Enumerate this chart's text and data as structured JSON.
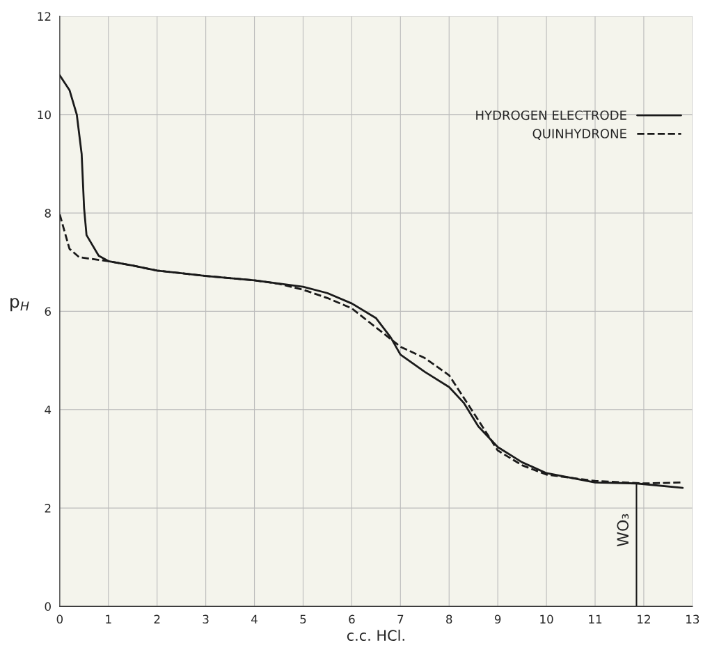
{
  "chart_data": {
    "type": "line",
    "xlabel": "c.c. HCl.",
    "ylabel": "p$_{H}$",
    "xlim": [
      0,
      13
    ],
    "ylim": [
      0,
      12
    ],
    "xticks": [
      0,
      1,
      2,
      3,
      4,
      5,
      6,
      7,
      8,
      9,
      10,
      11,
      12,
      13
    ],
    "yticks": [
      0,
      2,
      4,
      6,
      8,
      10,
      12
    ],
    "grid": true,
    "legend": "top right",
    "series": [
      {
        "name": "HYDROGEN ELECTRODE",
        "color": "#1a1a1a",
        "line_style": "solid",
        "x": [
          0,
          0.2,
          0.35,
          0.45,
          0.5,
          0.55,
          0.8,
          1,
          1.5,
          2,
          3,
          4,
          5,
          5.5,
          6,
          6.5,
          6.8,
          7,
          7.5,
          8,
          8.3,
          8.6,
          9,
          9.5,
          10,
          11,
          11.85,
          12.8
        ],
        "values": [
          10.8,
          10.5,
          10,
          9.2,
          8.1,
          7.55,
          7.13,
          7.02,
          6.93,
          6.83,
          6.72,
          6.63,
          6.5,
          6.37,
          6.16,
          5.86,
          5.47,
          5.12,
          4.77,
          4.46,
          4.14,
          3.66,
          3.24,
          2.93,
          2.71,
          2.52,
          2.5,
          2.41
        ]
      },
      {
        "color": "#1a1a1a",
        "line_style": "solid",
        "x": [
          11.85,
          11.85
        ],
        "values": [
          0,
          2.5
        ]
      },
      {
        "name": "QUINHYDRONE",
        "color": "#1a1a1a",
        "line_style": "dashed",
        "x": [
          0,
          0.2,
          0.4,
          1,
          1.5,
          2,
          3,
          4,
          4.5,
          5,
          5.5,
          6,
          6.5,
          7,
          7.5,
          8,
          8.5,
          9,
          9.5,
          10,
          11,
          12,
          12.8
        ],
        "values": [
          7.97,
          7.27,
          7.1,
          7.02,
          6.93,
          6.83,
          6.72,
          6.63,
          6.56,
          6.44,
          6.27,
          6.06,
          5.67,
          5.28,
          5.05,
          4.7,
          3.94,
          3.17,
          2.87,
          2.68,
          2.55,
          2.5,
          2.52
        ]
      }
    ],
    "annotations": [
      {
        "text": "WO₃",
        "x": 11.85,
        "y": 1.25
      }
    ]
  }
}
